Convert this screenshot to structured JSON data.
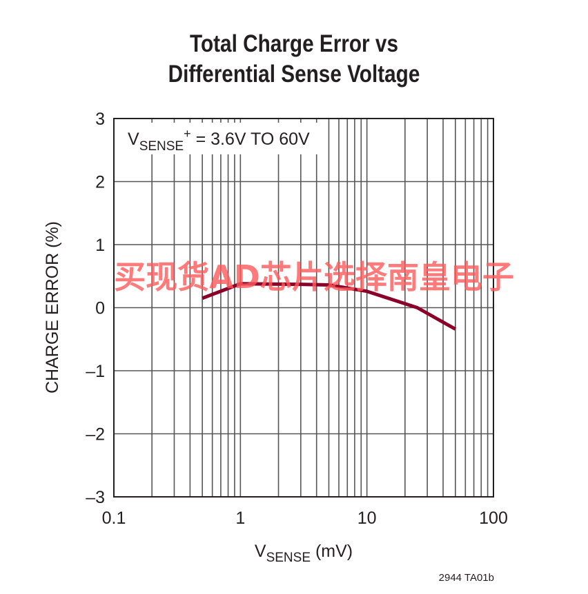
{
  "chart_data": {
    "type": "line",
    "title": [
      "Total Charge Error vs",
      "Differential Sense Voltage"
    ],
    "xlabel": {
      "main": "V",
      "sub": "SENSE",
      "rest": " (mV)"
    },
    "ylabel": "CHARGE ERROR (%)",
    "xscale": "log",
    "xlim": [
      0.1,
      100
    ],
    "ylim": [
      -3,
      3
    ],
    "xticks": [
      "0.1",
      "1",
      "10",
      "100"
    ],
    "yticks": [
      "3",
      "2",
      "1",
      "0",
      "–1",
      "–2",
      "–3"
    ],
    "grid": true,
    "annotation": {
      "main": "V",
      "sub": "SENSE",
      "sup": "+",
      "rest": " = 3.6V TO 60V"
    },
    "series": [
      {
        "color": "#8b0029",
        "x": [
          0.5,
          1,
          3,
          5,
          10,
          25,
          50
        ],
        "y": [
          0.15,
          0.38,
          0.37,
          0.36,
          0.26,
          0.0,
          -0.34
        ]
      }
    ],
    "footnote": "2944 TA01b",
    "watermark": "买现货AD芯片选择南皇电子",
    "watermark_color": "#ff5a5a"
  }
}
